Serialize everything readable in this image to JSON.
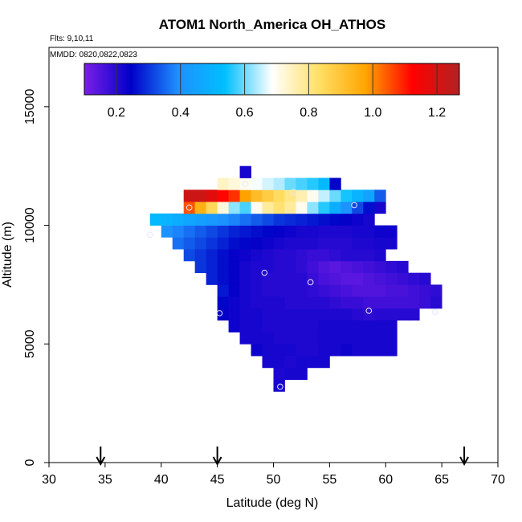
{
  "chart_data": {
    "type": "heatmap",
    "title": "ATOM1 North_America OH_ATHOS",
    "flights_note": "Flts: 9,10,11",
    "dates_note": "MMDD: 0820,0822,0823",
    "xlabel": "Latitude (deg N)",
    "ylabel": "Altitude (m)",
    "xlim": [
      30,
      70
    ],
    "ylim": [
      0,
      17500
    ],
    "x_ticks": [
      30,
      35,
      40,
      45,
      50,
      55,
      60,
      65,
      70
    ],
    "y_ticks": [
      0,
      5000,
      10000,
      15000
    ],
    "colorbar": {
      "min": 0.1,
      "max": 1.27,
      "ticks": [
        0.2,
        0.4,
        0.6,
        0.8,
        1.0,
        1.2
      ],
      "tick_labels": [
        "0.2",
        "0.4",
        "0.6",
        "0.8",
        "1.0",
        "1.2"
      ],
      "stops": [
        "#7b1fe8",
        "#0000c8",
        "#1e90ff",
        "#00bfff",
        "#ffffff",
        "#ffe066",
        "#ffa500",
        "#ff0000",
        "#b22222"
      ]
    },
    "cell_size": {
      "lat": 1,
      "alt": 500
    },
    "rows": [
      {
        "alt": 3000,
        "lat_start": 50,
        "values": [
          0.22
        ]
      },
      {
        "alt": 3500,
        "lat_start": 50,
        "values": [
          0.21,
          0.22,
          0.22
        ]
      },
      {
        "alt": 4000,
        "lat_start": 49,
        "values": [
          0.22,
          0.22,
          0.21,
          0.22,
          0.22,
          0.22
        ]
      },
      {
        "alt": 4500,
        "lat_start": 48,
        "values": [
          0.23,
          0.22,
          0.22,
          0.22,
          0.21,
          0.21,
          0.22,
          0.22,
          0.23,
          0.22,
          0.22,
          0.22,
          0.22
        ]
      },
      {
        "alt": 5000,
        "lat_start": 47,
        "values": [
          0.22,
          0.22,
          0.22,
          0.21,
          0.21,
          0.21,
          0.21,
          0.22,
          0.22,
          0.22,
          0.22,
          0.22,
          0.22,
          0.22
        ]
      },
      {
        "alt": 5500,
        "lat_start": 46,
        "values": [
          0.23,
          0.22,
          0.22,
          0.21,
          0.21,
          0.21,
          0.21,
          0.21,
          0.22,
          0.22,
          0.22,
          0.22,
          0.22,
          0.22,
          0.22
        ]
      },
      {
        "alt": 6000,
        "lat_start": 45,
        "values": [
          0.24,
          0.23,
          0.22,
          0.22,
          0.21,
          0.21,
          0.21,
          0.21,
          0.21,
          0.21,
          0.21,
          0.21,
          0.2,
          0.19,
          0.2,
          0.2,
          0.2,
          0.2
        ]
      },
      {
        "alt": 6500,
        "lat_start": 45,
        "values": [
          0.25,
          0.23,
          0.22,
          0.21,
          0.21,
          0.21,
          0.2,
          0.2,
          0.2,
          0.2,
          0.19,
          0.18,
          0.18,
          0.17,
          0.17,
          0.17,
          0.17,
          0.17,
          0.18,
          0.2
        ]
      },
      {
        "alt": 7000,
        "lat_start": 45,
        "values": [
          0.27,
          0.24,
          0.22,
          0.21,
          0.2,
          0.2,
          0.2,
          0.2,
          0.19,
          0.18,
          0.17,
          0.16,
          0.15,
          0.15,
          0.15,
          0.16,
          0.16,
          0.17,
          0.18,
          0.19
        ]
      },
      {
        "alt": 7500,
        "lat_start": 44,
        "values": [
          0.28,
          0.26,
          0.24,
          0.22,
          0.21,
          0.2,
          0.2,
          0.2,
          0.2,
          0.18,
          0.16,
          0.15,
          0.14,
          0.14,
          0.15,
          0.16,
          0.17,
          0.18,
          0.19,
          0.2
        ]
      },
      {
        "alt": 8000,
        "lat_start": 43,
        "values": [
          0.3,
          0.28,
          0.26,
          0.24,
          0.22,
          0.21,
          0.21,
          0.2,
          0.2,
          0.19,
          0.17,
          0.15,
          0.14,
          0.15,
          0.16,
          0.17,
          0.18,
          0.19,
          0.2
        ]
      },
      {
        "alt": 8500,
        "lat_start": 42,
        "values": [
          0.32,
          0.3,
          0.28,
          0.26,
          0.24,
          0.23,
          0.22,
          0.21,
          0.2,
          0.2,
          0.19,
          0.18,
          0.18,
          0.19,
          0.2,
          0.2,
          0.2,
          0.21
        ]
      },
      {
        "alt": 9000,
        "lat_start": 41,
        "values": [
          0.36,
          0.34,
          0.32,
          0.3,
          0.28,
          0.26,
          0.25,
          0.24,
          0.23,
          0.22,
          0.21,
          0.21,
          0.21,
          0.2,
          0.2,
          0.2,
          0.21,
          0.21,
          0.22,
          0.22
        ]
      },
      {
        "alt": 9500,
        "lat_start": 40,
        "values": [
          0.4,
          0.38,
          0.36,
          0.34,
          0.32,
          0.3,
          0.28,
          0.27,
          0.26,
          0.25,
          0.24,
          0.23,
          0.22,
          0.22,
          0.21,
          0.21,
          0.21,
          0.22,
          0.22,
          0.23,
          0.23
        ]
      },
      {
        "alt": 10000,
        "lat_start": 39,
        "values": [
          0.52,
          0.5,
          0.48,
          0.46,
          0.44,
          0.42,
          0.4,
          0.38,
          0.36,
          0.34,
          0.32,
          0.3,
          0.29,
          0.28,
          0.27,
          0.26,
          0.25,
          0.24,
          0.23,
          0.22
        ]
      },
      {
        "alt": 10500,
        "lat_start": 42,
        "values": [
          1.05,
          0.95,
          0.85,
          0.72,
          0.62,
          0.58,
          0.7,
          0.78,
          0.82,
          0.78,
          0.7,
          0.62,
          0.56,
          0.48,
          0.4,
          0.32,
          0.26,
          0.22
        ]
      },
      {
        "alt": 11000,
        "lat_start": 42,
        "values": [
          1.22,
          1.22,
          1.18,
          1.12,
          1.08,
          0.98,
          0.92,
          0.88,
          0.84,
          0.8,
          0.76,
          0.7,
          0.65,
          0.6,
          0.55,
          0.5,
          0.45,
          0.34
        ]
      },
      {
        "alt": 11500,
        "lat_start": 45,
        "values": [
          0.74,
          0.72,
          0.7,
          0.68,
          0.66,
          0.64,
          0.6,
          0.58,
          0.56,
          0.52,
          0.25
        ]
      },
      {
        "alt": 12000,
        "lat_start": 47,
        "values": [
          0.22
        ]
      }
    ],
    "sample_points": [
      {
        "lat": 42.5,
        "alt": 10750
      },
      {
        "lat": 47.5,
        "alt": 11750
      },
      {
        "lat": 51.8,
        "alt": 11400
      },
      {
        "lat": 57.2,
        "alt": 10850
      },
      {
        "lat": 39.0,
        "alt": 9600
      },
      {
        "lat": 49.2,
        "alt": 8000
      },
      {
        "lat": 53.3,
        "alt": 7600
      },
      {
        "lat": 45.2,
        "alt": 6300
      },
      {
        "lat": 58.5,
        "alt": 6400
      },
      {
        "lat": 64.4,
        "alt": 6350
      },
      {
        "lat": 50.6,
        "alt": 3200
      }
    ],
    "arrows_lat": [
      34.6,
      45.0,
      67.0
    ]
  }
}
